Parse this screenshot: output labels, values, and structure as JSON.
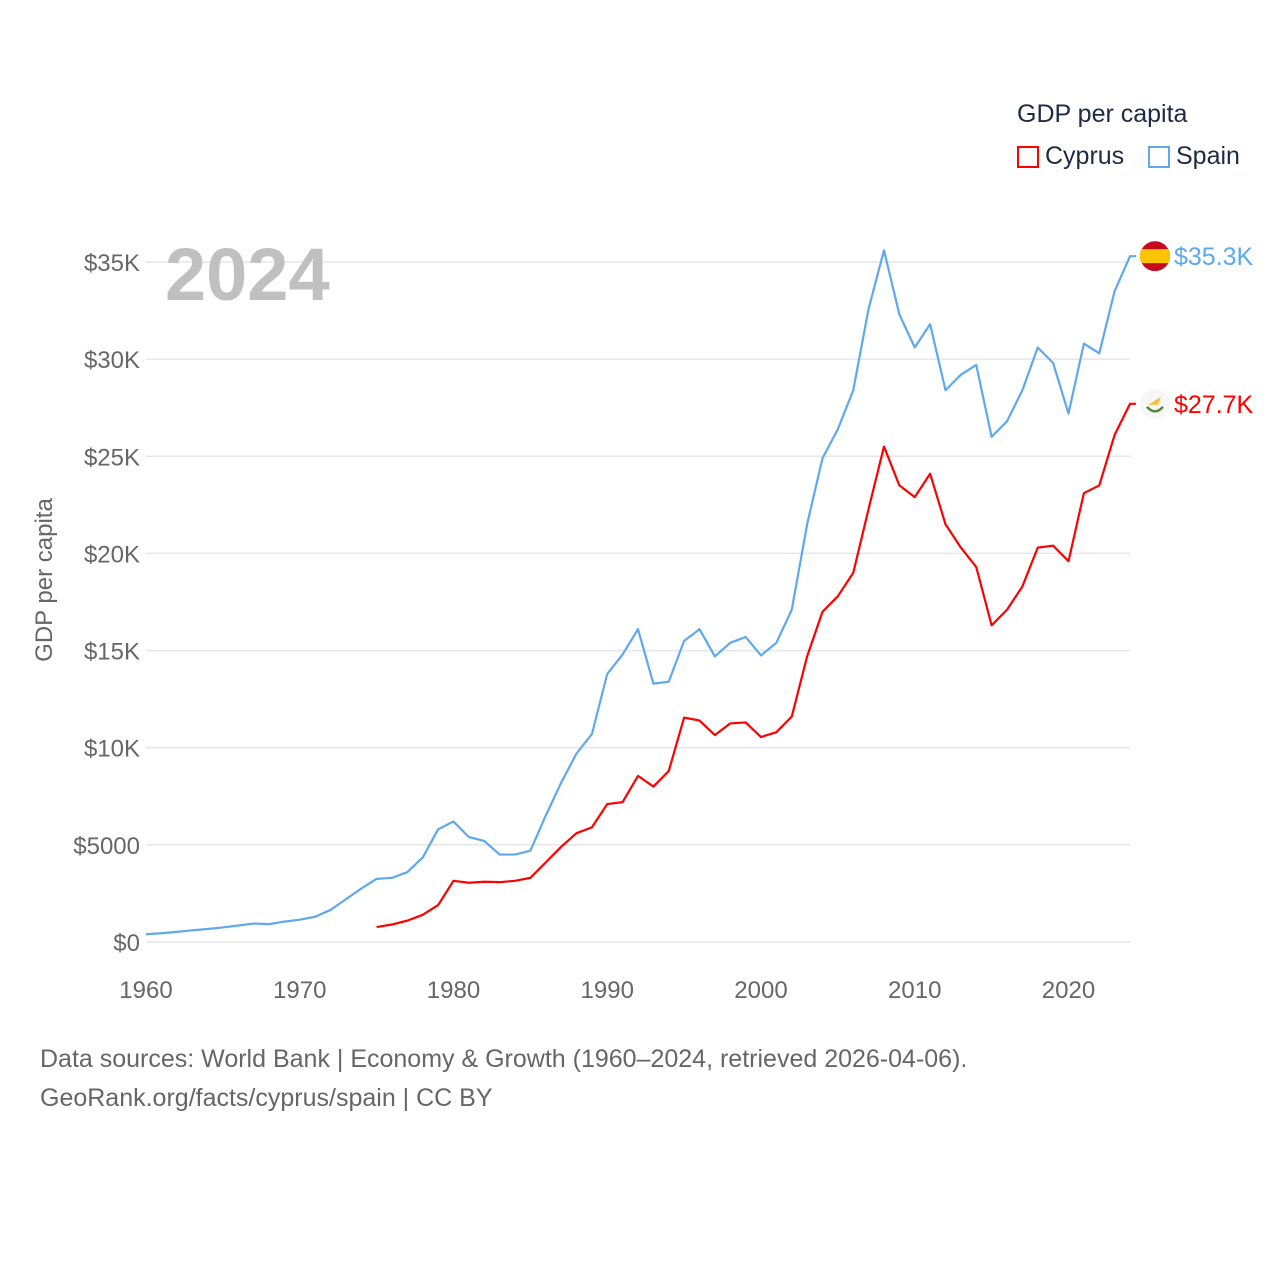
{
  "chart_data": {
    "type": "line",
    "title": "GDP per capita",
    "year_label": "2024",
    "ylabel": "GDP per capita",
    "xlabel": "",
    "xlim": [
      1960,
      2024
    ],
    "ylim": [
      0,
      35000
    ],
    "x_ticks": [
      1960,
      1970,
      1980,
      1990,
      2000,
      2010,
      2020
    ],
    "y_ticks": [
      0,
      5000,
      10000,
      15000,
      20000,
      25000,
      30000,
      35000
    ],
    "y_tick_labels": [
      "$0",
      "$5000",
      "$10K",
      "$15K",
      "$20K",
      "$25K",
      "$30K",
      "$35K"
    ],
    "grid": true,
    "legend_position": "top-right",
    "series": [
      {
        "name": "Cyprus",
        "color": "#ff0000",
        "end_label": "$27.7K",
        "flag": "cyprus-flag",
        "start_year": 1975,
        "values": [
          770,
          900,
          1100,
          1400,
          1900,
          3150,
          3050,
          3100,
          3080,
          3150,
          3300,
          4100,
          4900,
          5600,
          5900,
          7100,
          7200,
          8550,
          8000,
          8800,
          11550,
          11400,
          10650,
          11250,
          11300,
          10550,
          10800,
          11600,
          14700,
          17000,
          17800,
          19000,
          22300,
          25500,
          23500,
          22900,
          24100,
          21500,
          20300,
          19300,
          16300,
          17100,
          18300,
          20300,
          20400,
          19600,
          23100,
          23500,
          26100,
          27700
        ]
      },
      {
        "name": "Spain",
        "color": "#5ea9ee",
        "end_label": "$35.3K",
        "flag": "spain-flag",
        "start_year": 1960,
        "values": [
          400,
          450,
          520,
          600,
          670,
          750,
          850,
          950,
          920,
          1050,
          1150,
          1300,
          1650,
          2200,
          2750,
          3250,
          3300,
          3600,
          4350,
          5800,
          6200,
          5400,
          5200,
          4500,
          4500,
          4700,
          6500,
          8200,
          9700,
          10700,
          13800,
          14800,
          16100,
          13300,
          13400,
          15500,
          16100,
          14700,
          15400,
          15700,
          14750,
          15400,
          17100,
          21500,
          24900,
          26400,
          28400,
          32600,
          35600,
          32300,
          30600,
          31800,
          28400,
          29200,
          29700,
          26000,
          26800,
          28400,
          30600,
          29800,
          27200,
          30800,
          30300,
          33500,
          35300
        ]
      }
    ]
  },
  "footer": {
    "line1": "Data sources: World Bank | Economy & Growth (1960–2024, retrieved 2026-04-06).",
    "line2": "GeoRank.org/facts/cyprus/spain | CC BY"
  }
}
